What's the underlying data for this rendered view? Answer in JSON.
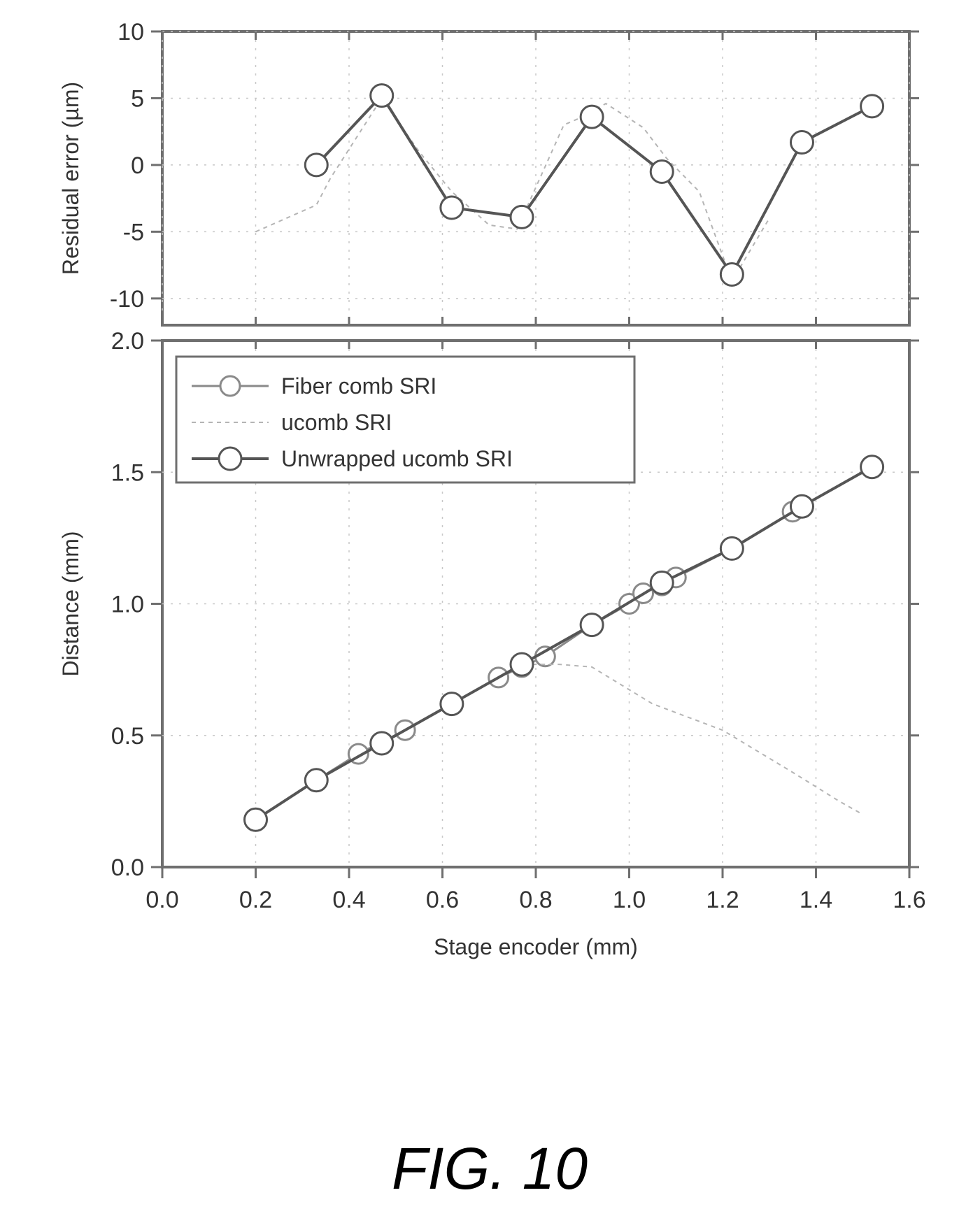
{
  "caption": "FIG. 10",
  "chart_data": [
    {
      "type": "line",
      "panel": "top",
      "xlabel": "",
      "ylabel": "Residual error (µm)",
      "xlim": [
        0.0,
        1.6
      ],
      "ylim": [
        -12,
        10
      ],
      "yticks": [
        10,
        5,
        0,
        -5,
        -10
      ],
      "ytick_labels": [
        "10",
        "5",
        "0",
        "-5",
        "-10"
      ],
      "grid": true,
      "series": [
        {
          "name": "Fiber comb SRI",
          "marker": "circle",
          "x": [
            0.33,
            0.47,
            0.62,
            0.77,
            0.92,
            1.07,
            1.22,
            1.37,
            1.52
          ],
          "y": [
            0.0,
            5.2,
            -3.2,
            -3.9,
            3.6,
            -0.5,
            -8.2,
            1.7,
            4.4
          ]
        },
        {
          "name": "ucomb SRI",
          "marker": "none",
          "x": [
            0.2,
            0.33,
            0.36,
            0.47,
            0.55,
            0.62,
            0.7,
            0.76,
            0.86,
            0.9,
            0.95,
            1.03,
            1.08,
            1.15,
            1.22,
            1.3
          ],
          "y": [
            -5.0,
            -3.0,
            -1.0,
            5.0,
            1.0,
            -2.0,
            -4.5,
            -4.8,
            3.0,
            3.6,
            4.6,
            2.8,
            0.5,
            -2.0,
            -8.7,
            -4.0
          ]
        },
        {
          "name": "Unwrapped ucomb SRI",
          "marker": "circle",
          "x": [
            0.33,
            0.47,
            0.62,
            0.77,
            0.92,
            1.07,
            1.22,
            1.37,
            1.52
          ],
          "y": [
            0.0,
            5.2,
            -3.2,
            -3.9,
            3.6,
            -0.5,
            -8.2,
            1.7,
            4.4
          ]
        }
      ]
    },
    {
      "type": "line",
      "panel": "bottom",
      "xlabel": "Stage encoder (mm)",
      "ylabel": "Distance (mm)",
      "xlim": [
        0.0,
        1.6
      ],
      "ylim": [
        0.0,
        2.0
      ],
      "xticks": [
        0.0,
        0.2,
        0.4,
        0.6,
        0.8,
        1.0,
        1.2,
        1.4,
        1.6
      ],
      "xtick_labels": [
        "0.0",
        "0.2",
        "0.4",
        "0.6",
        "0.8",
        "1.0",
        "1.2",
        "1.4",
        "1.6"
      ],
      "yticks": [
        0.0,
        0.5,
        1.0,
        1.5,
        2.0
      ],
      "ytick_labels": [
        "0.0",
        "0.5",
        "1.0",
        "1.5",
        "2.0"
      ],
      "grid": true,
      "legend_position": "top-left",
      "series": [
        {
          "name": "Fiber comb SRI",
          "marker": "circle",
          "x": [
            0.2,
            0.33,
            0.42,
            0.52,
            0.62,
            0.72,
            0.77,
            0.82,
            0.92,
            1.0,
            1.03,
            1.07,
            1.1,
            1.22,
            1.35,
            1.37,
            1.52
          ],
          "y": [
            0.18,
            0.33,
            0.43,
            0.52,
            0.62,
            0.72,
            0.76,
            0.8,
            0.92,
            1.0,
            1.04,
            1.07,
            1.1,
            1.21,
            1.35,
            1.37,
            1.52
          ]
        },
        {
          "name": "ucomb SRI",
          "marker": "none",
          "x": [
            0.2,
            0.33,
            0.47,
            0.62,
            0.77,
            0.85,
            0.92,
            1.05,
            1.2,
            1.35,
            1.45,
            1.5
          ],
          "y": [
            0.18,
            0.33,
            0.47,
            0.62,
            0.77,
            0.77,
            0.76,
            0.62,
            0.52,
            0.36,
            0.25,
            0.2
          ]
        },
        {
          "name": "Unwrapped ucomb SRI",
          "marker": "circle",
          "x": [
            0.2,
            0.33,
            0.47,
            0.62,
            0.77,
            0.92,
            1.07,
            1.22,
            1.37,
            1.52
          ],
          "y": [
            0.18,
            0.33,
            0.47,
            0.62,
            0.77,
            0.92,
            1.08,
            1.21,
            1.37,
            1.52
          ]
        }
      ]
    }
  ],
  "colors": {
    "axis": "#6f6f6f",
    "grid": "#c8c8c8",
    "fiber": "#8a8a8a",
    "ucomb": "#b5b5b5",
    "unwrapped": "#555555",
    "text": "#333333"
  }
}
